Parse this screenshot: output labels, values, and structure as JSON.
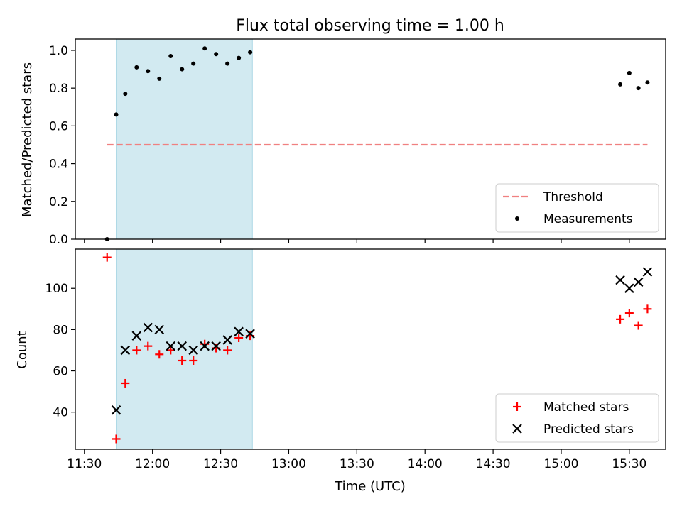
{
  "chart_data": [
    {
      "type": "scatter",
      "title": "Flux total observing time = 1.00 h",
      "xlabel": "",
      "ylabel": "Matched/Predicted stars",
      "xlim": [
        "11:26",
        "15:46"
      ],
      "ylim": [
        0,
        1.06
      ],
      "yticks": [
        0.0,
        0.2,
        0.4,
        0.6,
        0.8,
        1.0
      ],
      "ytick_labels": [
        "0.0",
        "0.2",
        "0.4",
        "0.6",
        "0.8",
        "1.0"
      ],
      "shaded_interval": [
        "11:44",
        "12:44"
      ],
      "shade_color": "#add8e6",
      "threshold": {
        "name": "Threshold",
        "value": 0.5,
        "x_start": "11:40",
        "x_end": "15:38",
        "color": "#f08080",
        "style": "dashed"
      },
      "series": [
        {
          "name": "Measurements",
          "marker": "dot",
          "color": "#000000",
          "x": [
            "11:40",
            "11:44",
            "11:48",
            "11:53",
            "11:58",
            "12:03",
            "12:08",
            "12:13",
            "12:18",
            "12:23",
            "12:28",
            "12:33",
            "12:38",
            "12:43",
            "15:26",
            "15:30",
            "15:34",
            "15:38"
          ],
          "y": [
            0.0,
            0.66,
            0.77,
            0.91,
            0.89,
            0.85,
            0.97,
            0.9,
            0.93,
            1.01,
            0.98,
            0.93,
            0.96,
            0.99,
            0.82,
            0.88,
            0.8,
            0.83
          ]
        }
      ],
      "legend": {
        "position": "bottom-right",
        "entries": [
          "Threshold",
          "Measurements"
        ]
      },
      "grid": false
    },
    {
      "type": "scatter",
      "title": "",
      "xlabel": "Time (UTC)",
      "ylabel": "Count",
      "xlim": [
        "11:26",
        "15:46"
      ],
      "ylim": [
        22,
        119
      ],
      "xticks": [
        "11:30",
        "12:00",
        "12:30",
        "13:00",
        "13:30",
        "14:00",
        "14:30",
        "15:00",
        "15:30"
      ],
      "yticks": [
        40,
        60,
        80,
        100
      ],
      "ytick_labels": [
        "40",
        "60",
        "80",
        "100"
      ],
      "shaded_interval": [
        "11:44",
        "12:44"
      ],
      "shade_color": "#add8e6",
      "series": [
        {
          "name": "Matched stars",
          "marker": "plus",
          "color": "#ff0000",
          "x": [
            "11:40",
            "11:44",
            "11:48",
            "11:53",
            "11:58",
            "12:03",
            "12:08",
            "12:13",
            "12:18",
            "12:23",
            "12:28",
            "12:33",
            "12:38",
            "12:43",
            "15:26",
            "15:30",
            "15:34",
            "15:38"
          ],
          "y": [
            115,
            27,
            54,
            70,
            72,
            68,
            70,
            65,
            65,
            73,
            71,
            70,
            76,
            77,
            85,
            88,
            82,
            90
          ]
        },
        {
          "name": "Predicted stars",
          "marker": "x",
          "color": "#000000",
          "x": [
            "11:44",
            "11:48",
            "11:53",
            "11:58",
            "12:03",
            "12:08",
            "12:13",
            "12:18",
            "12:23",
            "12:28",
            "12:33",
            "12:38",
            "12:43",
            "15:26",
            "15:30",
            "15:34",
            "15:38"
          ],
          "y": [
            41,
            70,
            77,
            81,
            80,
            72,
            72,
            70,
            72,
            72,
            75,
            79,
            78,
            104,
            100,
            103,
            108
          ]
        }
      ],
      "legend": {
        "position": "bottom-right",
        "entries": [
          "Matched stars",
          "Predicted stars"
        ]
      },
      "grid": false
    }
  ]
}
